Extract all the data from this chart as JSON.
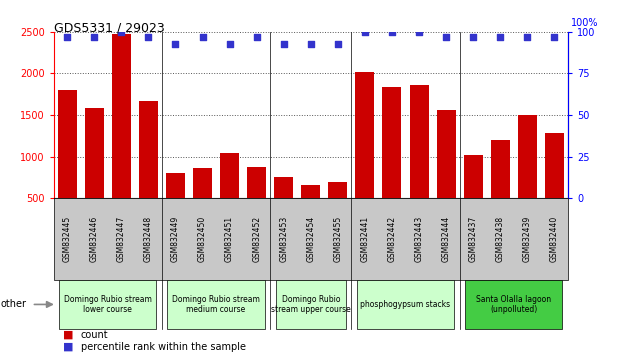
{
  "title": "GDS5331 / 29023",
  "samples": [
    "GSM832445",
    "GSM832446",
    "GSM832447",
    "GSM832448",
    "GSM832449",
    "GSM832450",
    "GSM832451",
    "GSM832452",
    "GSM832453",
    "GSM832454",
    "GSM832455",
    "GSM832441",
    "GSM832442",
    "GSM832443",
    "GSM832444",
    "GSM832437",
    "GSM832438",
    "GSM832439",
    "GSM832440"
  ],
  "counts": [
    1800,
    1580,
    2470,
    1670,
    800,
    860,
    1040,
    880,
    760,
    660,
    690,
    2020,
    1840,
    1860,
    1560,
    1020,
    1200,
    1500,
    1290
  ],
  "percentiles": [
    97,
    97,
    100,
    97,
    93,
    97,
    93,
    97,
    93,
    93,
    93,
    100,
    100,
    100,
    97,
    97,
    97,
    97,
    97
  ],
  "bar_color": "#cc0000",
  "dot_color": "#3333cc",
  "ylim_left": [
    500,
    2500
  ],
  "ylim_right": [
    0,
    100
  ],
  "yticks_left": [
    500,
    1000,
    1500,
    2000,
    2500
  ],
  "yticks_right": [
    0,
    25,
    50,
    75,
    100
  ],
  "groups": [
    {
      "label": "Domingo Rubio stream\nlower course",
      "start": 0,
      "end": 3,
      "color": "#ccffcc"
    },
    {
      "label": "Domingo Rubio stream\nmedium course",
      "start": 4,
      "end": 7,
      "color": "#ccffcc"
    },
    {
      "label": "Domingo Rubio\nstream upper course",
      "start": 8,
      "end": 10,
      "color": "#ccffcc"
    },
    {
      "label": "phosphogypsum stacks",
      "start": 11,
      "end": 14,
      "color": "#ccffcc"
    },
    {
      "label": "Santa Olalla lagoon\n(unpolluted)",
      "start": 15,
      "end": 18,
      "color": "#44cc44"
    }
  ],
  "group_boundaries": [
    3.5,
    7.5,
    10.5,
    14.5
  ],
  "tick_bg_color": "#c8c8c8",
  "plot_bg": "#ffffff"
}
